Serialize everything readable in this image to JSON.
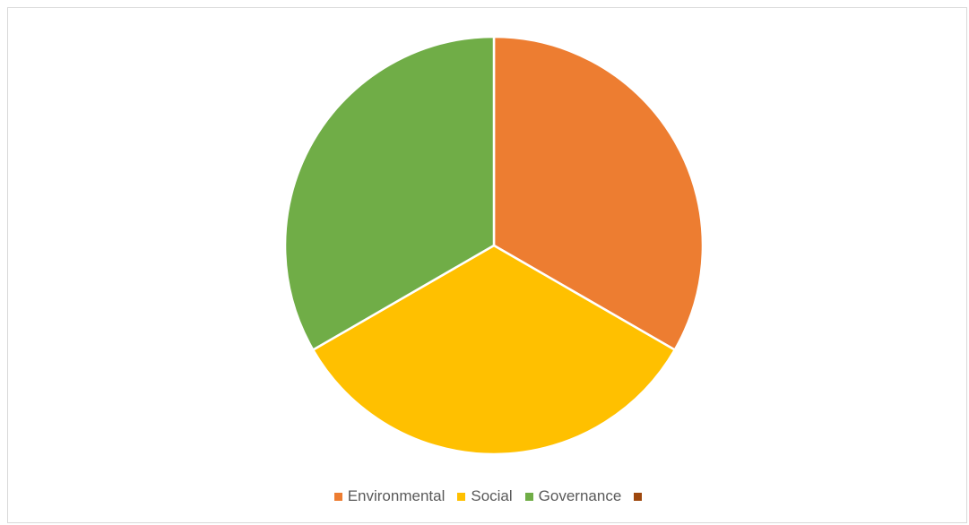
{
  "chart_data": {
    "type": "pie",
    "title": "",
    "categories": [
      "Environmental",
      "Social",
      "Governance",
      ""
    ],
    "values": [
      1,
      1,
      1,
      0
    ],
    "colors": [
      "#ED7D31",
      "#FFC000",
      "#70AD47",
      "#9E480E"
    ],
    "legend": "bottom"
  }
}
